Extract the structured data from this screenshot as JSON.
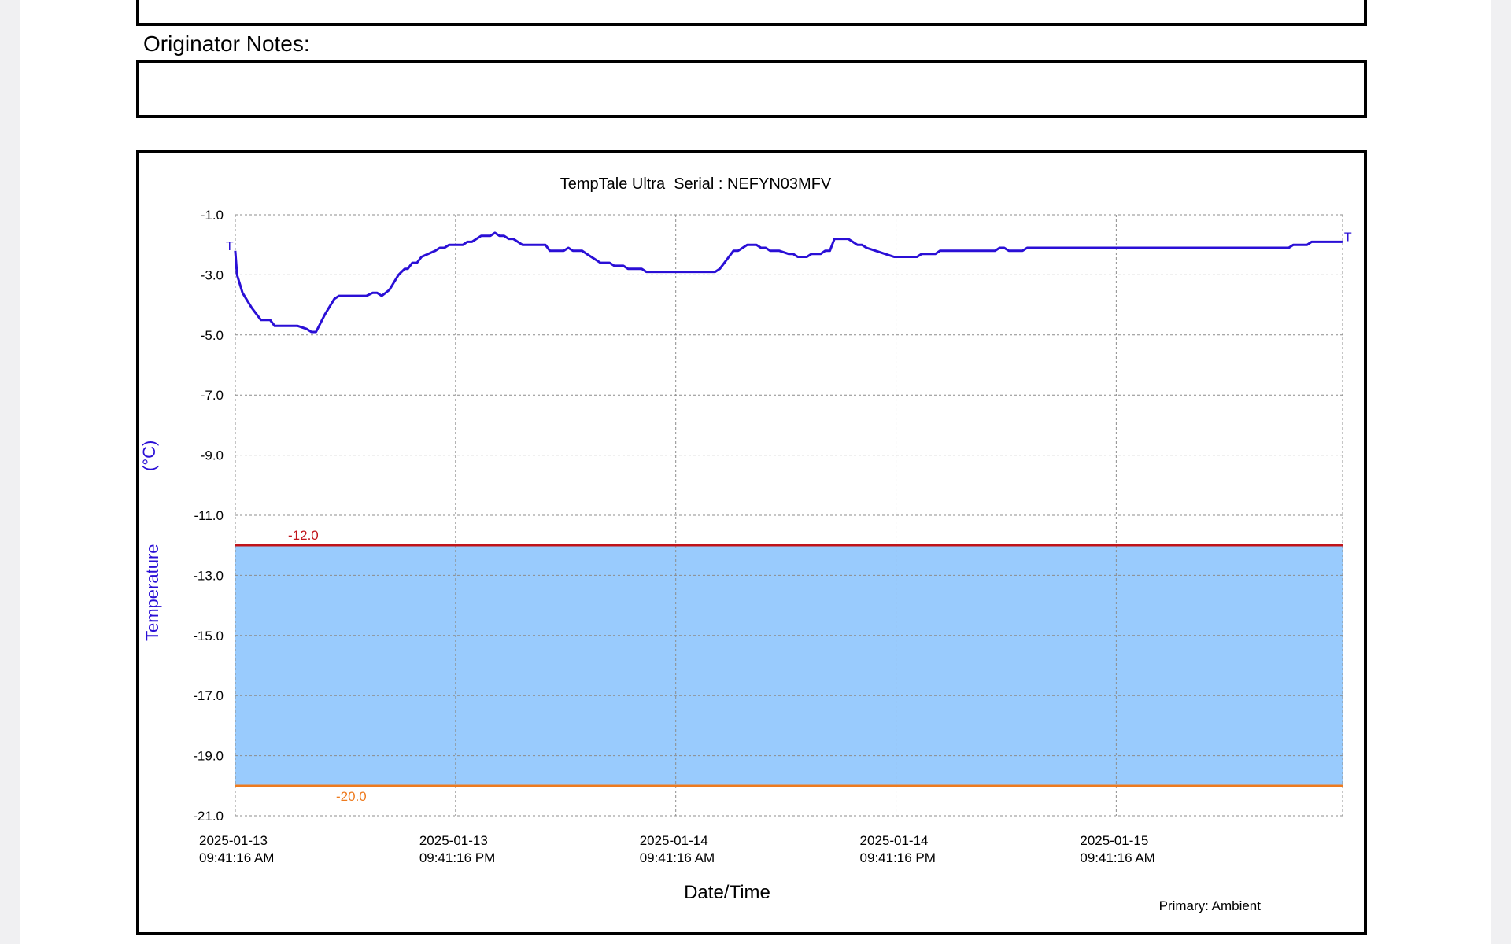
{
  "notes": {
    "label": "Originator Notes:",
    "value": ""
  },
  "footer": {
    "primary": "Primary: Ambient"
  },
  "colors": {
    "series": "#2a0fd6",
    "band": "#99cbfd",
    "upper_limit": "#c0141a",
    "lower_limit": "#ee7b1f",
    "grid": "#8c8c8c"
  },
  "chart_data": {
    "type": "line",
    "title": "TempTale Ultra  Serial : NEFYN03MFV",
    "xlabel": "Date/Time",
    "ylabel": "Temperature",
    "yunit": "(°C)",
    "ylim": [
      -21.0,
      -1.0
    ],
    "yticks": [
      -1.0,
      -3.0,
      -5.0,
      -7.0,
      -9.0,
      -11.0,
      -13.0,
      -15.0,
      -17.0,
      -19.0,
      -21.0
    ],
    "ytick_labels": [
      "-1.0",
      "-3.0",
      "-5.0",
      "-7.0",
      "-9.0",
      "-11.0",
      "-13.0",
      "-15.0",
      "-17.0",
      "-19.0",
      "-21.0"
    ],
    "xlim": [
      "2025-01-13 09:41:16",
      "2025-01-15 22:01:16"
    ],
    "xticks": [
      {
        "x": "2025-01-13 09:41:16",
        "date": "2025-01-13",
        "time": "09:41:16 AM"
      },
      {
        "x": "2025-01-13 21:41:16",
        "date": "2025-01-13",
        "time": "09:41:16 PM"
      },
      {
        "x": "2025-01-14 09:41:16",
        "date": "2025-01-14",
        "time": "09:41:16 AM"
      },
      {
        "x": "2025-01-14 21:41:16",
        "date": "2025-01-14",
        "time": "09:41:16 PM"
      },
      {
        "x": "2025-01-15 09:41:16",
        "date": "2025-01-15",
        "time": "09:41:16 AM"
      }
    ],
    "grid": true,
    "band": {
      "low": -20.0,
      "high": -12.0
    },
    "limits": [
      {
        "value": -12.0,
        "label": "-12.0"
      },
      {
        "value": -20.0,
        "label": "-20.0"
      }
    ],
    "markers": [
      "T",
      "T"
    ],
    "series": [
      {
        "points": [
          [
            "2025-01-13 09:41",
            -2.2
          ],
          [
            "2025-01-13 09:47",
            -3.0
          ],
          [
            "2025-01-13 10:05",
            -3.6
          ],
          [
            "2025-01-13 10:35",
            -4.1
          ],
          [
            "2025-01-13 11:05",
            -4.5
          ],
          [
            "2025-01-13 11:35",
            -4.5
          ],
          [
            "2025-01-13 11:50",
            -4.7
          ],
          [
            "2025-01-13 13:05",
            -4.7
          ],
          [
            "2025-01-13 13:35",
            -4.8
          ],
          [
            "2025-01-13 13:50",
            -4.9
          ],
          [
            "2025-01-13 14:05",
            -4.9
          ],
          [
            "2025-01-13 14:35",
            -4.3
          ],
          [
            "2025-01-13 15:05",
            -3.8
          ],
          [
            "2025-01-13 15:20",
            -3.7
          ],
          [
            "2025-01-13 16:50",
            -3.7
          ],
          [
            "2025-01-13 17:10",
            -3.6
          ],
          [
            "2025-01-13 17:25",
            -3.6
          ],
          [
            "2025-01-13 17:40",
            -3.7
          ],
          [
            "2025-01-13 18:05",
            -3.5
          ],
          [
            "2025-01-13 18:35",
            -3.0
          ],
          [
            "2025-01-13 18:55",
            -2.8
          ],
          [
            "2025-01-13 19:05",
            -2.8
          ],
          [
            "2025-01-13 19:20",
            -2.6
          ],
          [
            "2025-01-13 19:35",
            -2.6
          ],
          [
            "2025-01-13 19:50",
            -2.4
          ],
          [
            "2025-01-13 20:35",
            -2.2
          ],
          [
            "2025-01-13 20:50",
            -2.1
          ],
          [
            "2025-01-13 21:05",
            -2.1
          ],
          [
            "2025-01-13 21:20",
            -2.0
          ],
          [
            "2025-01-13 22:05",
            -2.0
          ],
          [
            "2025-01-13 22:20",
            -1.9
          ],
          [
            "2025-01-13 22:35",
            -1.9
          ],
          [
            "2025-01-13 23:05",
            -1.7
          ],
          [
            "2025-01-13 23:35",
            -1.7
          ],
          [
            "2025-01-13 23:50",
            -1.6
          ],
          [
            "2025-01-14 00:05",
            -1.7
          ],
          [
            "2025-01-14 00:20",
            -1.7
          ],
          [
            "2025-01-14 00:35",
            -1.8
          ],
          [
            "2025-01-14 00:50",
            -1.8
          ],
          [
            "2025-01-14 01:05",
            -1.9
          ],
          [
            "2025-01-14 01:20",
            -2.0
          ],
          [
            "2025-01-14 02:35",
            -2.0
          ],
          [
            "2025-01-14 02:50",
            -2.2
          ],
          [
            "2025-01-14 03:35",
            -2.2
          ],
          [
            "2025-01-14 03:50",
            -2.1
          ],
          [
            "2025-01-14 04:05",
            -2.2
          ],
          [
            "2025-01-14 04:35",
            -2.2
          ],
          [
            "2025-01-14 04:50",
            -2.3
          ],
          [
            "2025-01-14 05:20",
            -2.5
          ],
          [
            "2025-01-14 05:35",
            -2.6
          ],
          [
            "2025-01-14 06:05",
            -2.6
          ],
          [
            "2025-01-14 06:20",
            -2.7
          ],
          [
            "2025-01-14 06:50",
            -2.7
          ],
          [
            "2025-01-14 07:05",
            -2.8
          ],
          [
            "2025-01-14 07:50",
            -2.8
          ],
          [
            "2025-01-14 08:05",
            -2.9
          ],
          [
            "2025-01-14 09:41",
            -2.9
          ],
          [
            "2025-01-14 11:50",
            -2.9
          ],
          [
            "2025-01-14 12:05",
            -2.8
          ],
          [
            "2025-01-14 12:35",
            -2.4
          ],
          [
            "2025-01-14 12:50",
            -2.2
          ],
          [
            "2025-01-14 13:05",
            -2.2
          ],
          [
            "2025-01-14 13:35",
            -2.0
          ],
          [
            "2025-01-14 14:05",
            -2.0
          ],
          [
            "2025-01-14 14:20",
            -2.1
          ],
          [
            "2025-01-14 14:35",
            -2.1
          ],
          [
            "2025-01-14 14:50",
            -2.2
          ],
          [
            "2025-01-14 15:20",
            -2.2
          ],
          [
            "2025-01-14 15:50",
            -2.3
          ],
          [
            "2025-01-14 16:05",
            -2.3
          ],
          [
            "2025-01-14 16:20",
            -2.4
          ],
          [
            "2025-01-14 16:50",
            -2.4
          ],
          [
            "2025-01-14 17:05",
            -2.3
          ],
          [
            "2025-01-14 17:35",
            -2.3
          ],
          [
            "2025-01-14 17:50",
            -2.2
          ],
          [
            "2025-01-14 18:05",
            -2.2
          ],
          [
            "2025-01-14 18:20",
            -1.8
          ],
          [
            "2025-01-14 18:35",
            -1.8
          ],
          [
            "2025-01-14 19:05",
            -1.8
          ],
          [
            "2025-01-14 19:20",
            -1.9
          ],
          [
            "2025-01-14 19:35",
            -2.0
          ],
          [
            "2025-01-14 19:50",
            -2.0
          ],
          [
            "2025-01-14 20:05",
            -2.1
          ],
          [
            "2025-01-14 20:35",
            -2.2
          ],
          [
            "2025-01-14 21:05",
            -2.3
          ],
          [
            "2025-01-14 21:35",
            -2.4
          ],
          [
            "2025-01-14 22:50",
            -2.4
          ],
          [
            "2025-01-14 23:05",
            -2.3
          ],
          [
            "2025-01-14 23:50",
            -2.3
          ],
          [
            "2025-01-15 00:05",
            -2.2
          ],
          [
            "2025-01-15 03:05",
            -2.2
          ],
          [
            "2025-01-15 03:20",
            -2.1
          ],
          [
            "2025-01-15 03:35",
            -2.1
          ],
          [
            "2025-01-15 03:50",
            -2.2
          ],
          [
            "2025-01-15 04:35",
            -2.2
          ],
          [
            "2025-01-15 04:50",
            -2.1
          ],
          [
            "2025-01-15 19:05",
            -2.1
          ],
          [
            "2025-01-15 19:20",
            -2.0
          ],
          [
            "2025-01-15 20:05",
            -2.0
          ],
          [
            "2025-01-15 20:20",
            -1.9
          ],
          [
            "2025-01-15 22:01",
            -1.9
          ]
        ]
      }
    ]
  }
}
